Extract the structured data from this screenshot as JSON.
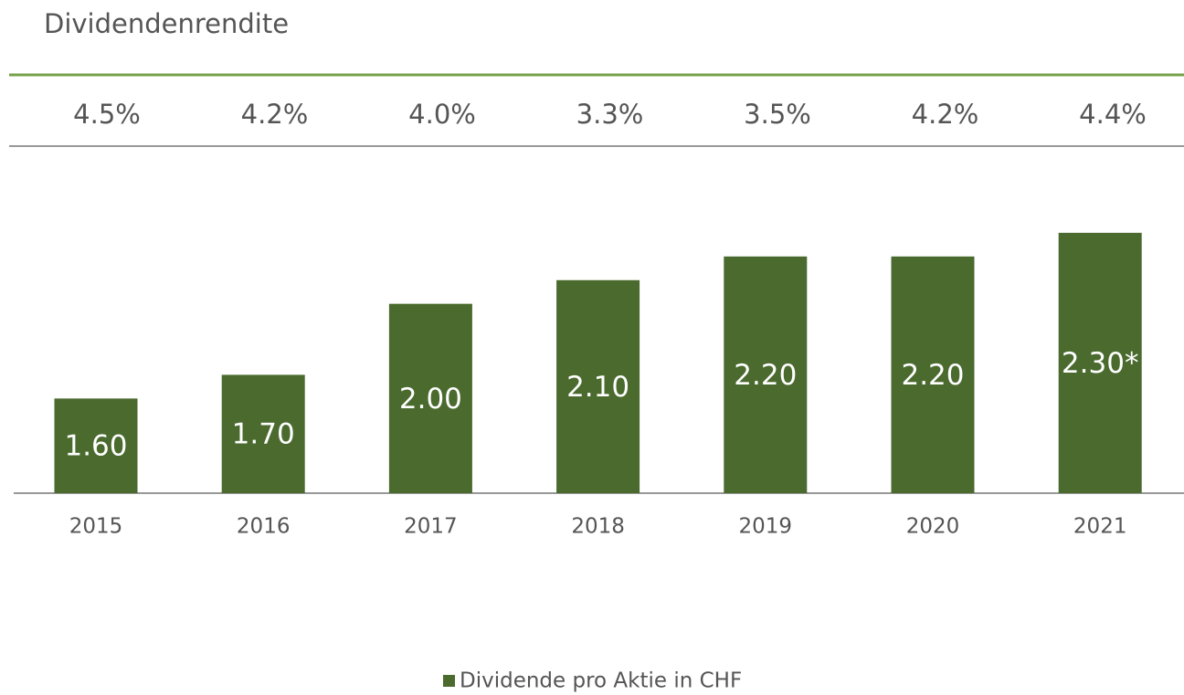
{
  "chart_data": {
    "type": "bar",
    "dividend_yield": {
      "title": "Dividendenrendite",
      "values": [
        4.5,
        4.2,
        4.0,
        3.3,
        3.5,
        4.2,
        4.4
      ],
      "value_labels": [
        "4.5%",
        "4.2%",
        "4.0%",
        "3.3%",
        "3.5%",
        "4.2%",
        "4.4%"
      ]
    },
    "categories": [
      "2015",
      "2016",
      "2017",
      "2018",
      "2019",
      "2020",
      "2021"
    ],
    "series": [
      {
        "name": "Dividende pro Aktie in CHF",
        "color": "#4a6a2e",
        "values": [
          1.6,
          1.7,
          2.0,
          2.1,
          2.2,
          2.2,
          2.3
        ],
        "value_labels": [
          "1.60",
          "1.70",
          "2.00",
          "2.10",
          "2.20",
          "2.20",
          "2.30*"
        ]
      }
    ],
    "ylim": [
      1.2,
      2.4
    ]
  }
}
